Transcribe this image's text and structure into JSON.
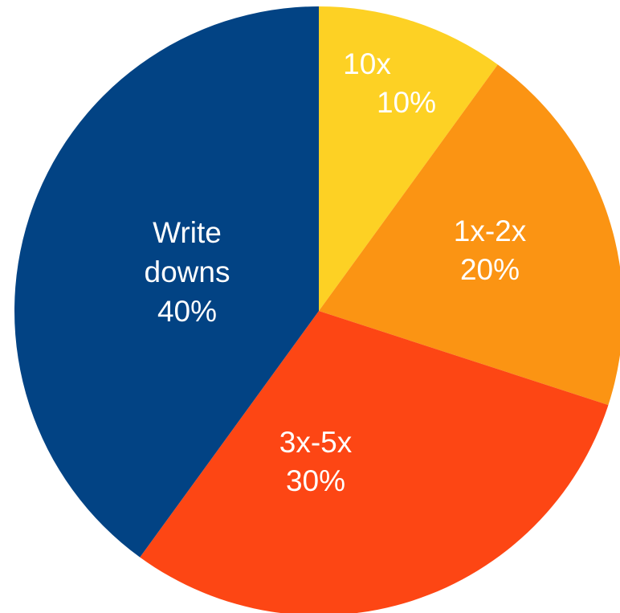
{
  "chart_data": {
    "type": "pie",
    "start_angle_deg": 0,
    "direction": "clockwise",
    "slices": [
      {
        "label": [
          "10x",
          "10%"
        ],
        "value": 10,
        "color": "#FDD124"
      },
      {
        "label": [
          "1x-2x",
          "20%"
        ],
        "value": 20,
        "color": "#FB9413"
      },
      {
        "label": [
          "3x-5x",
          "30%"
        ],
        "value": 30,
        "color": "#FD4614"
      },
      {
        "label": [
          "Write",
          "downs",
          "40%"
        ],
        "value": 40,
        "color": "#024384"
      }
    ]
  }
}
